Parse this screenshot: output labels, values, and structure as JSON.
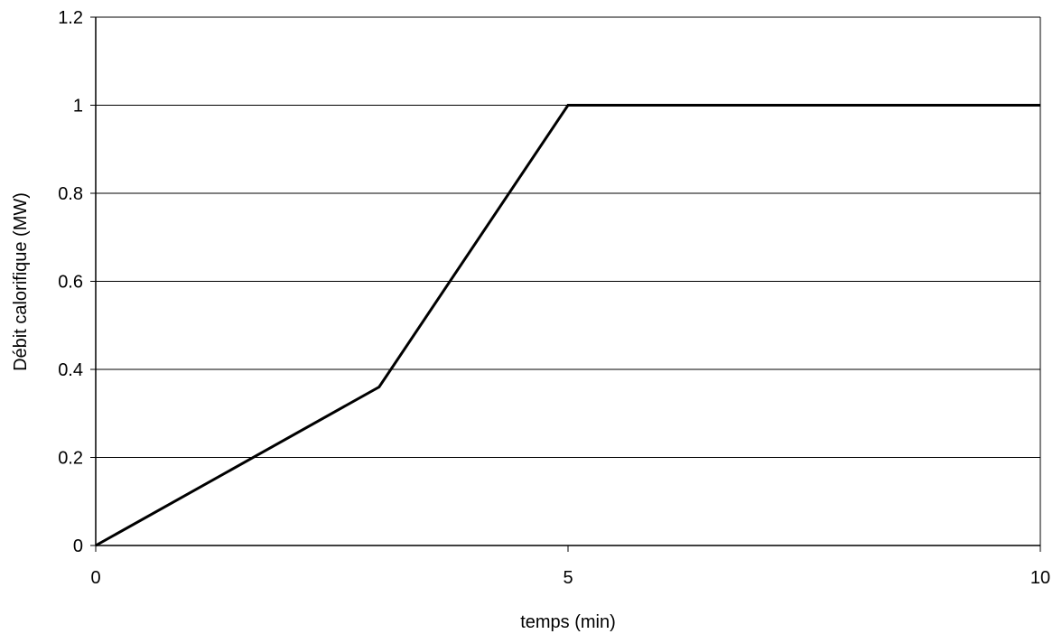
{
  "chart_data": {
    "type": "line",
    "title": "",
    "xlabel": "temps (min)",
    "ylabel": "Débit calorifique (MW)",
    "xlim": [
      0,
      10
    ],
    "ylim": [
      0,
      1.2
    ],
    "xticks": [
      0,
      5,
      10
    ],
    "xtick_labels": [
      "0",
      "5",
      "10"
    ],
    "yticks": [
      0,
      0.2,
      0.4,
      0.6,
      0.8,
      1.0,
      1.2
    ],
    "ytick_labels": [
      "0",
      "0.2",
      "0.4",
      "0.6",
      "0.8",
      "1",
      "1.2"
    ],
    "grid": {
      "horizontal": true,
      "vertical": false
    },
    "legend": "none",
    "colors": {
      "line": "#000000",
      "grid": "#000000",
      "axis": "#000000"
    },
    "series": [
      {
        "x": [
          0,
          3,
          5,
          10
        ],
        "y": [
          0,
          0.36,
          1.0,
          1.0
        ]
      }
    ]
  }
}
